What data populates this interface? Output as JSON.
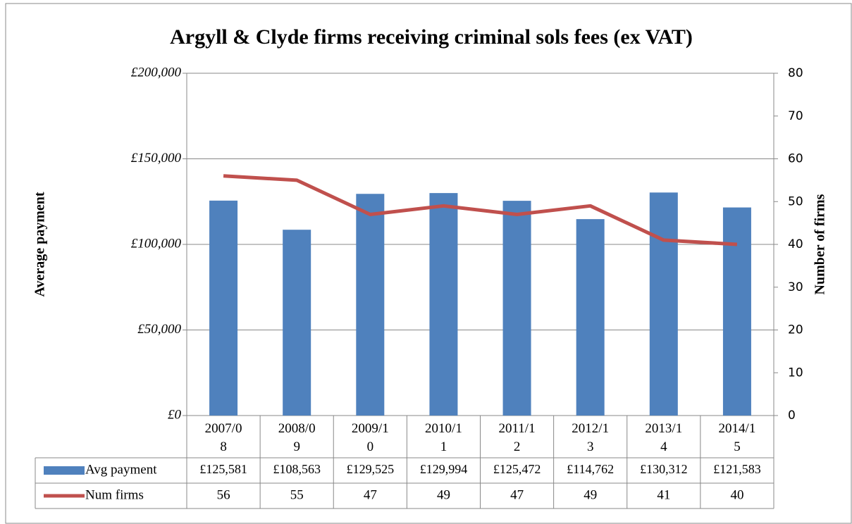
{
  "chart_data": {
    "type": "bar",
    "title": "Argyll & Clyde firms receiving criminal sols fees (ex VAT)",
    "y_label": "Average payment",
    "y2_label": "Number of firms",
    "categories": [
      "2007/08",
      "2008/09",
      "2009/10",
      "2010/11",
      "2011/12",
      "2012/13",
      "2013/14",
      "2014/15"
    ],
    "series": [
      {
        "name": "Avg payment",
        "type": "bar",
        "color": "#4f81bd",
        "values": [
          125581,
          108563,
          129525,
          129994,
          125472,
          114762,
          130312,
          121583
        ],
        "value_labels": [
          "£125,581",
          "£108,563",
          "£129,525",
          "£129,994",
          "£125,472",
          "£114,762",
          "£130,312",
          "£121,583"
        ]
      },
      {
        "name": "Num firms",
        "type": "line",
        "color": "#c0504d",
        "axis": "y2",
        "values": [
          56,
          55,
          47,
          49,
          47,
          49,
          41,
          40
        ]
      }
    ],
    "ylim": [
      0,
      200000
    ],
    "yticks": [
      {
        "value": 0,
        "label": "£0"
      },
      {
        "value": 50000,
        "label": "£50,000"
      },
      {
        "value": 100000,
        "label": "£100,000"
      },
      {
        "value": 150000,
        "label": "£150,000"
      },
      {
        "value": 200000,
        "label": "£200,000"
      }
    ],
    "y2lim": [
      0,
      80
    ],
    "y2ticks": [
      0,
      10,
      20,
      30,
      40,
      50,
      60,
      70,
      80
    ],
    "grid": true,
    "data_table": true
  }
}
